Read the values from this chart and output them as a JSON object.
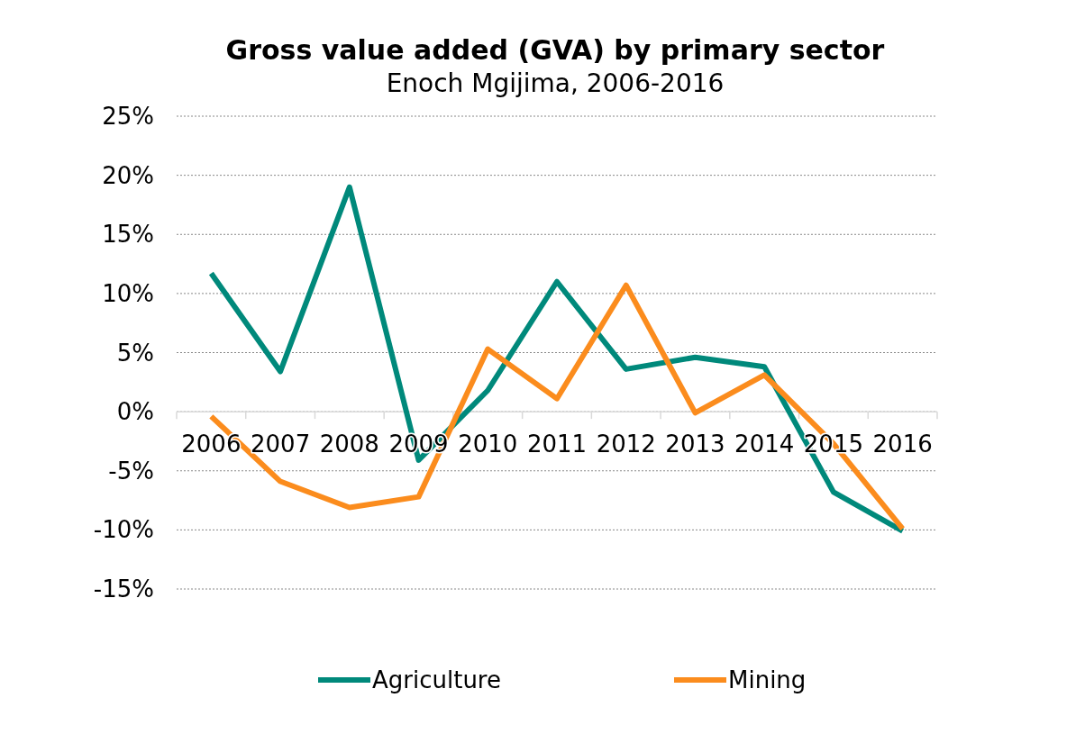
{
  "chart_data": {
    "type": "line",
    "title": "Gross value added (GVA) by primary sector",
    "subtitle": "Enoch Mgijima, 2006-2016",
    "categories": [
      "2006",
      "2007",
      "2008",
      "2009",
      "2010",
      "2011",
      "2012",
      "2013",
      "2014",
      "2015",
      "2016"
    ],
    "series": [
      {
        "name": "Agriculture",
        "color": "#00897b",
        "values": [
          11.7,
          3.4,
          19.0,
          -4.1,
          1.8,
          11.0,
          3.6,
          4.6,
          3.8,
          -6.8,
          -10.1
        ]
      },
      {
        "name": "Mining",
        "color": "#fb8c1d",
        "values": [
          -0.4,
          -5.9,
          -8.1,
          -7.2,
          5.3,
          1.1,
          10.7,
          -0.1,
          3.1,
          -2.7,
          -9.9
        ]
      }
    ],
    "ylim": [
      -15,
      25
    ],
    "yticks": [
      {
        "value": -15,
        "label": "-15%"
      },
      {
        "value": -10,
        "label": "-10%"
      },
      {
        "value": -5,
        "label": "-5%"
      },
      {
        "value": 0,
        "label": "0%"
      },
      {
        "value": 5,
        "label": "5%"
      },
      {
        "value": 10,
        "label": "10%"
      },
      {
        "value": 15,
        "label": "15%"
      },
      {
        "value": 20,
        "label": "20%"
      },
      {
        "value": 25,
        "label": "25%"
      }
    ],
    "grid": "y",
    "legend": "bottom",
    "marker": "none",
    "line_style": "solid"
  }
}
